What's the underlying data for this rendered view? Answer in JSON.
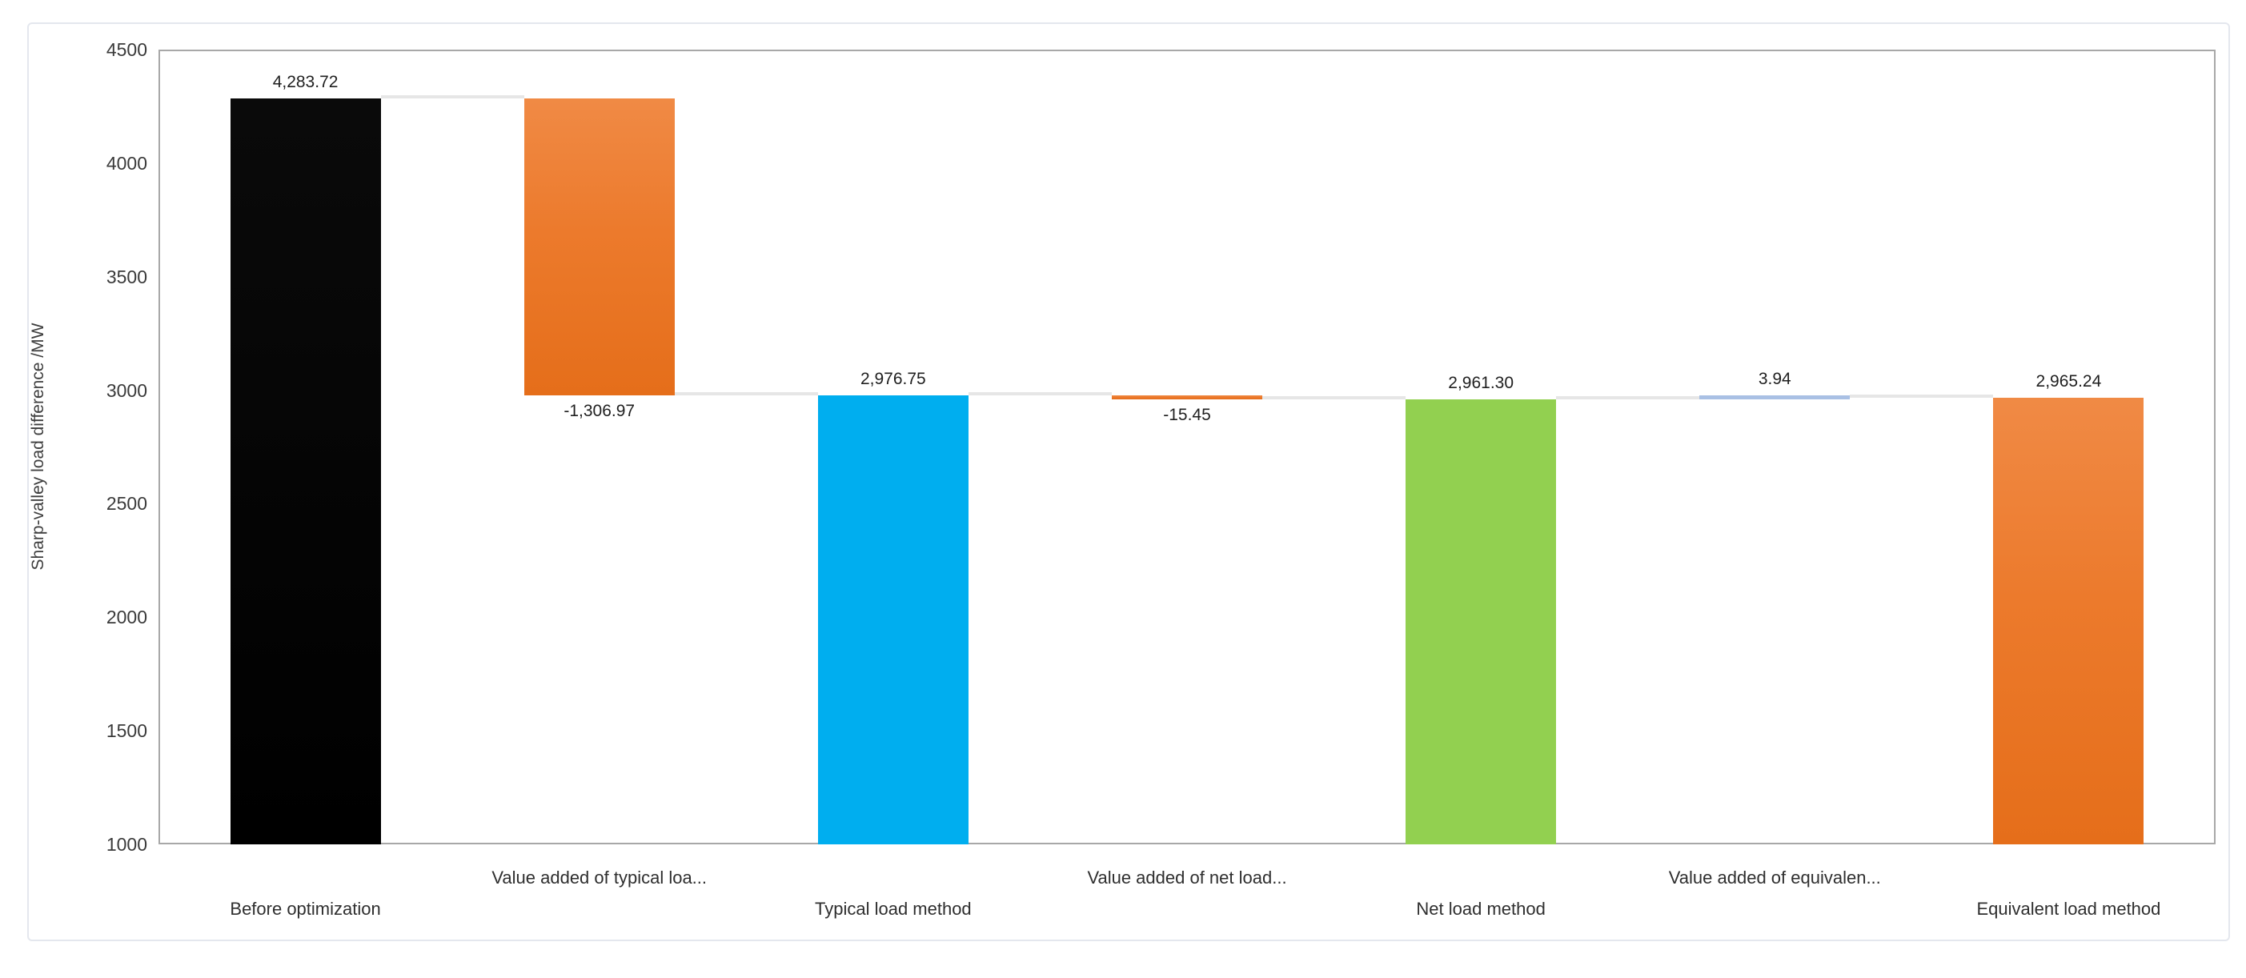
{
  "chart_data": {
    "type": "bar",
    "subtype": "waterfall",
    "title": "",
    "xlabel": "",
    "ylabel": "Sharp-valley load difference /MW",
    "ylim": [
      1000,
      4500
    ],
    "y_tick_step": 500,
    "y_ticks": [
      4500,
      4000,
      3500,
      3000,
      2500,
      2000,
      1500,
      1000
    ],
    "gridlines": false,
    "legend": "none",
    "baseline": 1000,
    "categories": [
      "Before optimization",
      "Value added of typical loa...",
      "Typical load method",
      "Value added of net load...",
      "Net load method",
      "Value added of equivalen...",
      "Equivalent load method"
    ],
    "items": [
      {
        "label": "Before optimization",
        "kind": "total",
        "value": 4283.72,
        "display": "4,283.72",
        "color_key": "black"
      },
      {
        "label": "Value added of typical loa...",
        "kind": "decrease",
        "value": -1306.97,
        "display": "-1,306.97",
        "color_key": "orange"
      },
      {
        "label": "Typical load method",
        "kind": "total",
        "value": 2976.75,
        "display": "2,976.75",
        "color_key": "blue"
      },
      {
        "label": "Value added of net load...",
        "kind": "decrease",
        "value": -15.45,
        "display": "-15.45",
        "color_key": "orange"
      },
      {
        "label": "Net load method",
        "kind": "total",
        "value": 2961.3,
        "display": "2,961.30",
        "color_key": "green"
      },
      {
        "label": "Value added of equivalen...",
        "kind": "increase",
        "value": 3.94,
        "display": "3.94",
        "color_key": "periwinkle"
      },
      {
        "label": "Equivalent load method",
        "kind": "total",
        "value": 2965.24,
        "display": "2,965.24",
        "color_key": "orange"
      }
    ],
    "colors": {
      "black": "#000000",
      "orange": "#ED7D31",
      "blue": "#00AEEF",
      "green": "#92D050",
      "periwinkle": "#A9C0E4",
      "connector": "#E6E6E6",
      "plot_border": "#A8A8A8",
      "outer_border": "#E4E7EE",
      "tick_text": "#3A3A3A",
      "label_text": "#1F1F1F"
    }
  }
}
